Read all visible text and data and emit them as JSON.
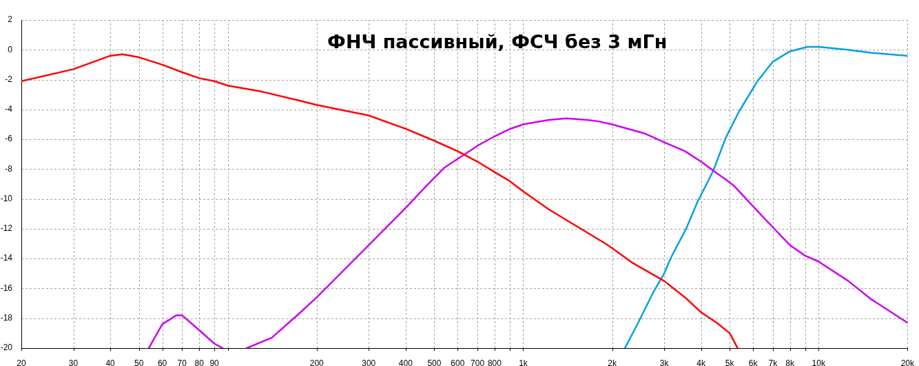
{
  "chart_data": {
    "type": "line",
    "title": "ФНЧ пассивный, ФСЧ без 3 мГн",
    "log": "x",
    "grid": true,
    "marker": "none",
    "xlim": [
      20,
      20000
    ],
    "ylim": [
      -20,
      2
    ],
    "xticks": [
      20,
      30,
      40,
      50,
      60,
      70,
      80,
      90,
      {
        "value": 100,
        "label": null
      },
      200,
      300,
      400,
      500,
      600,
      700,
      800,
      {
        "value": 900,
        "label": null
      },
      {
        "value": 1000,
        "label": "1k"
      },
      {
        "value": 2000,
        "label": "2k"
      },
      {
        "value": 3000,
        "label": "3k"
      },
      {
        "value": 4000,
        "label": "4k"
      },
      {
        "value": 5000,
        "label": "5k"
      },
      {
        "value": 6000,
        "label": "6k"
      },
      {
        "value": 7000,
        "label": "7k"
      },
      {
        "value": 8000,
        "label": "8k"
      },
      {
        "value": 9000,
        "label": null
      },
      {
        "value": 10000,
        "label": "10k"
      },
      {
        "value": 20000,
        "label": "20k"
      }
    ],
    "yticks": [
      -20,
      -18,
      -16,
      -14,
      -12,
      -10,
      -8,
      -6,
      -4,
      -2,
      0,
      2
    ],
    "series": [
      {
        "color": "#ff0000",
        "x": [
          20,
          30,
          40,
          44,
          50,
          60,
          70,
          80,
          90,
          100,
          130,
          174,
          200,
          300,
          400,
          500,
          600,
          700,
          800,
          900,
          1000,
          1220,
          1900,
          2000,
          2350,
          3000,
          3530,
          4000,
          4520,
          5000,
          5320
        ],
        "values": [
          -2.1,
          -1.3,
          -0.4,
          -0.3,
          -0.5,
          -1.0,
          -1.5,
          -1.9,
          -2.1,
          -2.4,
          -2.8,
          -3.4,
          -3.7,
          -4.4,
          -5.3,
          -6.1,
          -6.8,
          -7.5,
          -8.2,
          -8.8,
          -9.5,
          -10.7,
          -13.0,
          -13.3,
          -14.3,
          -15.5,
          -16.6,
          -17.6,
          -18.3,
          -19.0,
          -20
        ]
      },
      {
        "color": "#cc00ee",
        "x": [
          54,
          60,
          67,
          70,
          80,
          90,
          96,
          105,
          116,
          141,
          174,
          200,
          300,
          400,
          466,
          541,
          634,
          705,
          800,
          904,
          1000,
          1220,
          1400,
          1650,
          1800,
          2000,
          2570,
          3000,
          3530,
          4000,
          4400,
          4850,
          5160,
          6000,
          7000,
          8000,
          9000,
          10000,
          12600,
          15000,
          20000
        ],
        "values": [
          -20,
          -18.4,
          -17.8,
          -17.8,
          -18.8,
          -19.7,
          -20,
          null,
          -20,
          -19.3,
          -17.7,
          -16.6,
          -13.1,
          -10.6,
          -9.2,
          -7.9,
          -7.0,
          -6.4,
          -5.8,
          -5.3,
          -5.0,
          -4.7,
          -4.6,
          -4.7,
          -4.8,
          -5.0,
          -5.6,
          -6.2,
          -6.8,
          -7.5,
          -8.1,
          -8.7,
          -9.1,
          -10.5,
          -11.9,
          -13.1,
          -13.8,
          -14.2,
          -15.5,
          -16.7,
          -18.3
        ]
      },
      {
        "color": "#00a0e6",
        "x": [
          2210,
          2450,
          2750,
          3000,
          3170,
          3560,
          3890,
          4250,
          4400,
          4850,
          5390,
          6210,
          7000,
          8000,
          9170,
          10000,
          12600,
          15000,
          20000
        ],
        "values": [
          -20,
          -18.3,
          -16.3,
          -15.0,
          -13.9,
          -12.0,
          -10.2,
          -8.7,
          -8.1,
          -5.9,
          -4.1,
          -2.1,
          -0.8,
          -0.1,
          0.2,
          0.2,
          0.0,
          -0.2,
          -0.4
        ]
      }
    ]
  }
}
